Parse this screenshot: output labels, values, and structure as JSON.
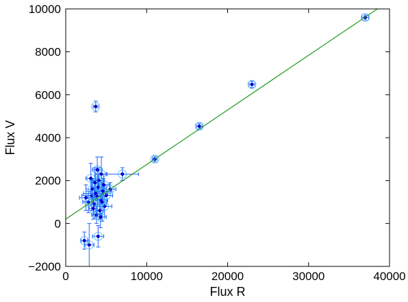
{
  "chart_data": {
    "type": "scatter",
    "xlabel": "Flux R",
    "ylabel": "Flux V",
    "xlim": [
      0,
      40000
    ],
    "ylim": [
      -2000,
      10000
    ],
    "xticks": [
      0,
      10000,
      20000,
      30000,
      40000
    ],
    "yticks": [
      -2000,
      0,
      2000,
      4000,
      6000,
      8000,
      10000
    ],
    "xtick_labels": [
      "0",
      "10000",
      "20000",
      "30000",
      "40000"
    ],
    "ytick_labels": [
      "−2000",
      "0",
      "2000",
      "4000",
      "6000",
      "8000",
      "10000"
    ],
    "grid": false,
    "colors": {
      "points": "#0000cc",
      "errorbars": "#1f5fff",
      "outliers": "#1fa5ff",
      "fit_line": "#2ca02c"
    },
    "fit_line": {
      "x": [
        0,
        38500
      ],
      "y": [
        200,
        10000
      ]
    },
    "series": [
      {
        "points": [
          {
            "x": 37000,
            "y": 9600,
            "xerr": 400,
            "yerr": 120
          },
          {
            "x": 23000,
            "y": 6480,
            "xerr": 350,
            "yerr": 150
          },
          {
            "x": 16500,
            "y": 4530,
            "xerr": 350,
            "yerr": 130
          },
          {
            "x": 11000,
            "y": 3000,
            "xerr": 300,
            "yerr": 130
          },
          {
            "x": 3700,
            "y": 5450,
            "xerr": 300,
            "yerr": 250
          },
          {
            "x": 7000,
            "y": 2300,
            "xerr": 2000,
            "yerr": 300
          },
          {
            "x": 5500,
            "y": 1600,
            "xerr": 700,
            "yerr": 300
          },
          {
            "x": 3200,
            "y": 1300,
            "xerr": 1200,
            "yerr": 700
          },
          {
            "x": 4000,
            "y": 1700,
            "xerr": 800,
            "yerr": 600
          },
          {
            "x": 4300,
            "y": 1100,
            "xerr": 900,
            "yerr": 500
          },
          {
            "x": 3500,
            "y": 900,
            "xerr": 700,
            "yerr": 500
          },
          {
            "x": 4600,
            "y": 1500,
            "xerr": 1100,
            "yerr": 600
          },
          {
            "x": 3900,
            "y": 1250,
            "xerr": 600,
            "yerr": 800
          },
          {
            "x": 4100,
            "y": 2000,
            "xerr": 700,
            "yerr": 600
          },
          {
            "x": 3300,
            "y": 1600,
            "xerr": 800,
            "yerr": 500
          },
          {
            "x": 4800,
            "y": 800,
            "xerr": 900,
            "yerr": 500
          },
          {
            "x": 3800,
            "y": 400,
            "xerr": 600,
            "yerr": 400
          },
          {
            "x": 4400,
            "y": 2300,
            "xerr": 700,
            "yerr": 800
          },
          {
            "x": 2800,
            "y": 1000,
            "xerr": 700,
            "yerr": 500
          },
          {
            "x": 4200,
            "y": 600,
            "xerr": 500,
            "yerr": 400
          },
          {
            "x": 3600,
            "y": 1900,
            "xerr": 500,
            "yerr": 700
          },
          {
            "x": 5000,
            "y": 1300,
            "xerr": 800,
            "yerr": 500
          },
          {
            "x": 4000,
            "y": -600,
            "xerr": 700,
            "yerr": 500
          },
          {
            "x": 3700,
            "y": 1400,
            "xerr": 1500,
            "yerr": 600
          },
          {
            "x": 4500,
            "y": 1000,
            "xerr": 600,
            "yerr": 900
          },
          {
            "x": 3100,
            "y": 2100,
            "xerr": 600,
            "yerr": 700
          },
          {
            "x": 4700,
            "y": 1800,
            "xerr": 700,
            "yerr": 500
          },
          {
            "x": 3400,
            "y": 700,
            "xerr": 500,
            "yerr": 500
          },
          {
            "x": 4300,
            "y": 300,
            "xerr": 700,
            "yerr": 500
          },
          {
            "x": 3900,
            "y": 2500,
            "xerr": 600,
            "yerr": 600
          },
          {
            "x": 2900,
            "y": -1000,
            "xerr": 600,
            "yerr": 1000
          },
          {
            "x": 2300,
            "y": -800,
            "xerr": 400,
            "yerr": 400
          },
          {
            "x": 2500,
            "y": 1200,
            "xerr": 800,
            "yerr": 600
          }
        ]
      }
    ]
  }
}
